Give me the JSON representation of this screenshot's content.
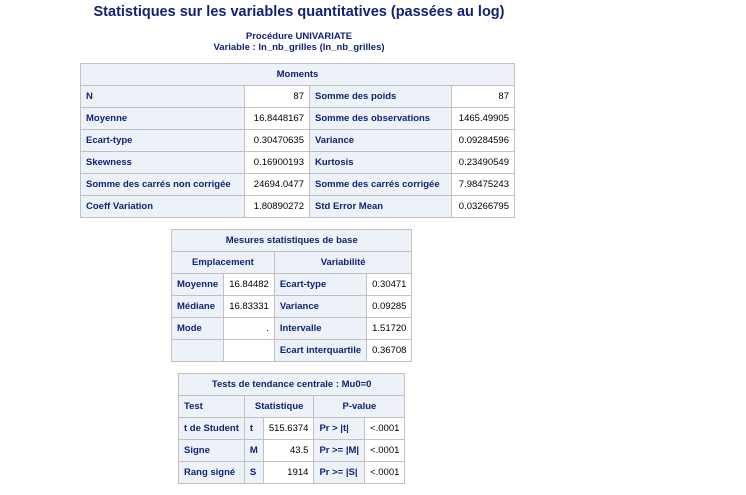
{
  "title": "Statistiques sur les variables quantitatives (passées au log)",
  "procedure": "Procédure UNIVARIATE",
  "variable": "Variable : ln_nb_grilles (ln_nb_grilles)",
  "moments": {
    "caption": "Moments",
    "rows": [
      {
        "l1": "N",
        "v1": "87",
        "l2": "Somme des poids",
        "v2": "87"
      },
      {
        "l1": "Moyenne",
        "v1": "16.8448167",
        "l2": "Somme des observations",
        "v2": "1465.49905"
      },
      {
        "l1": "Ecart-type",
        "v1": "0.30470635",
        "l2": "Variance",
        "v2": "0.09284596"
      },
      {
        "l1": "Skewness",
        "v1": "0.16900193",
        "l2": "Kurtosis",
        "v2": "0.23490549"
      },
      {
        "l1": "Somme des carrés non corrigée",
        "v1": "24694.0477",
        "l2": "Somme des carrés corrigée",
        "v2": "7.98475243"
      },
      {
        "l1": "Coeff Variation",
        "v1": "1.80890272",
        "l2": "Std Error Mean",
        "v2": "0.03266795"
      }
    ]
  },
  "basic": {
    "caption": "Mesures statistiques de base",
    "col_location": "Emplacement",
    "col_variability": "Variabilité",
    "rows": [
      {
        "l1": "Moyenne",
        "v1": "16.84482",
        "l2": "Ecart-type",
        "v2": "0.30471"
      },
      {
        "l1": "Médiane",
        "v1": "16.83331",
        "l2": "Variance",
        "v2": "0.09285"
      },
      {
        "l1": "Mode",
        "v1": ".",
        "l2": "Intervalle",
        "v2": "1.51720"
      },
      {
        "l1": "",
        "v1": "",
        "l2": "Ecart interquartile",
        "v2": "0.36708"
      }
    ]
  },
  "tests": {
    "caption": "Tests de tendance centrale : Mu0=0",
    "headers": {
      "test": "Test",
      "stat": "Statistique",
      "pvalue": "P-value"
    },
    "rows": [
      {
        "test": "t de Student",
        "sym": "t",
        "stat": "515.6374",
        "pr": "Pr > |t|",
        "p": "<.0001"
      },
      {
        "test": "Signe",
        "sym": "M",
        "stat": "43.5",
        "pr": "Pr >= |M|",
        "p": "<.0001"
      },
      {
        "test": "Rang signé",
        "sym": "S",
        "stat": "1914",
        "pr": "Pr >= |S|",
        "p": "<.0001"
      }
    ]
  }
}
